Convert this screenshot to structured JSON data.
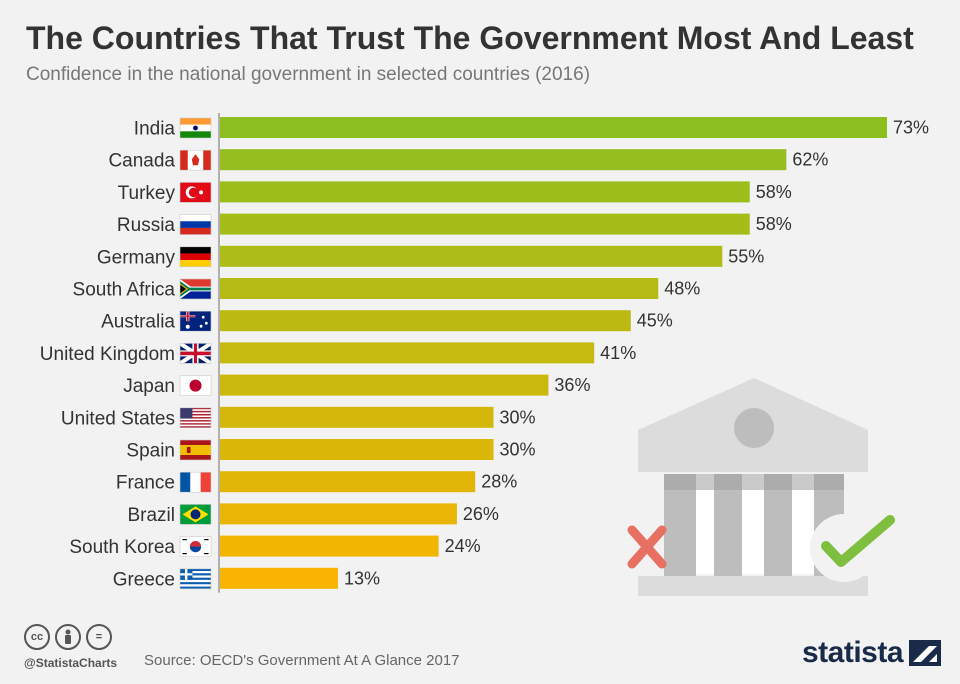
{
  "header": {
    "title": "The Countries That Trust The Government Most And Least",
    "subtitle": "Confidence in the national government in selected countries (2016)"
  },
  "chart_data": {
    "type": "bar",
    "orientation": "horizontal",
    "title": "The Countries That Trust The Government Most And Least",
    "subtitle": "Confidence in the national government in selected countries (2016)",
    "categories": [
      "India",
      "Canada",
      "Turkey",
      "Russia",
      "Germany",
      "South Africa",
      "Australia",
      "United Kingdom",
      "Japan",
      "United States",
      "Spain",
      "France",
      "Brazil",
      "South Korea",
      "Greece"
    ],
    "values": [
      73,
      62,
      58,
      58,
      55,
      48,
      45,
      41,
      36,
      30,
      30,
      28,
      26,
      24,
      13
    ],
    "value_labels": [
      "73%",
      "62%",
      "58%",
      "58%",
      "55%",
      "48%",
      "45%",
      "41%",
      "36%",
      "30%",
      "30%",
      "28%",
      "26%",
      "24%",
      "13%"
    ],
    "unit": "%",
    "xlim": [
      0,
      73
    ],
    "xlabel": "",
    "ylabel": "",
    "grid": false,
    "colors": {
      "high": "#8ebf20",
      "low": "#f9b400"
    },
    "flags": [
      "india-flag",
      "canada-flag",
      "turkey-flag",
      "russia-flag",
      "germany-flag",
      "south-africa-flag",
      "australia-flag",
      "united-kingdom-flag",
      "japan-flag",
      "united-states-flag",
      "spain-flag",
      "france-flag",
      "brazil-flag",
      "south-korea-flag",
      "greece-flag"
    ]
  },
  "illustration": {
    "icons": [
      "government-building-icon",
      "cross-icon",
      "checkmark-icon"
    ],
    "colors": {
      "building": "#dcdcdc",
      "columns": "#bdbdbd",
      "cross": "#e87063",
      "check": "#7fbf3f"
    }
  },
  "footer": {
    "license_icons": [
      "cc",
      "by",
      "="
    ],
    "handle": "@StatistaCharts",
    "source": "Source: OECD's Government At A Glance 2017",
    "brand": "statista"
  }
}
